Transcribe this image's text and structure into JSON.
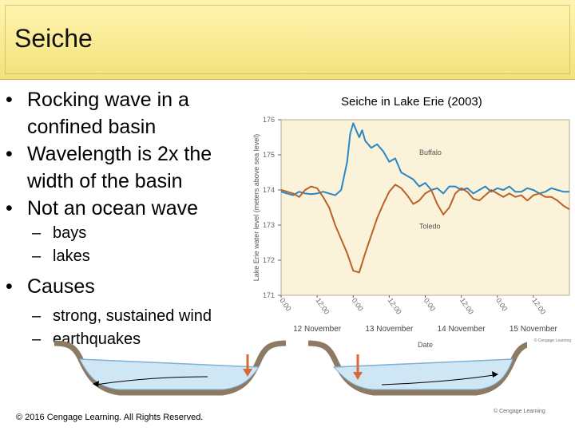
{
  "slide": {
    "title": "Seiche",
    "bullets": [
      {
        "text": "Rocking wave in a confined basin",
        "lines": [
          "Rocking wave in a",
          "confined basin"
        ]
      },
      {
        "text": "Wavelength is 2x the width of the basin",
        "lines": [
          "Wavelength is 2x the",
          "width of the basin"
        ]
      },
      {
        "text": "Not an ocean wave",
        "lines": [
          "Not an ocean wave"
        ]
      }
    ],
    "sub_bullets_1": [
      "bays",
      "lakes"
    ],
    "causes_label": "Causes",
    "sub_bullets_2": [
      "strong, sustained wind",
      "earthquakes"
    ],
    "copyright": "© 2016 Cengage Learning. All Rights Reserved.",
    "figure_credit": "© Cengage Learning",
    "chart_credit": "© Cengage Learning"
  },
  "chart_data": {
    "type": "line",
    "title": "Seiche in Lake Erie (2003)",
    "xlabel": "Date",
    "ylabel": "Lake Erie water level (meters above sea level)",
    "ylim": [
      171,
      176
    ],
    "yticks": [
      171,
      172,
      173,
      174,
      175,
      176
    ],
    "xlim": [
      0,
      96
    ],
    "xticks": [
      {
        "hour": 0,
        "label": "0:00"
      },
      {
        "hour": 12,
        "label": "12:00"
      },
      {
        "hour": 24,
        "label": "0:00"
      },
      {
        "hour": 36,
        "label": "12:00"
      },
      {
        "hour": 48,
        "label": "0:00"
      },
      {
        "hour": 60,
        "label": "12:00"
      },
      {
        "hour": 72,
        "label": "0:00"
      },
      {
        "hour": 84,
        "label": "12:00"
      }
    ],
    "day_labels": [
      {
        "hour": 12,
        "label": "12 November"
      },
      {
        "hour": 36,
        "label": "13 November"
      },
      {
        "hour": 60,
        "label": "14 November"
      },
      {
        "hour": 84,
        "label": "15 November"
      }
    ],
    "grid": false,
    "background": "#fbf3d9",
    "series": [
      {
        "name": "Buffalo",
        "color": "#2a86c4",
        "x": [
          0,
          2,
          4,
          6,
          8,
          10,
          12,
          14,
          16,
          18,
          20,
          22,
          23,
          24,
          25,
          26,
          27,
          28,
          30,
          32,
          34,
          36,
          38,
          40,
          42,
          44,
          46,
          48,
          50,
          52,
          54,
          56,
          58,
          60,
          62,
          64,
          66,
          68,
          70,
          72,
          74,
          76,
          78,
          80,
          82,
          84,
          86,
          88,
          90,
          92,
          94,
          96
        ],
        "y": [
          173.95,
          173.9,
          173.85,
          173.95,
          173.9,
          173.88,
          173.9,
          173.95,
          173.9,
          173.85,
          174,
          174.8,
          175.6,
          175.9,
          175.7,
          175.5,
          175.7,
          175.4,
          175.2,
          175.3,
          175.1,
          174.8,
          174.9,
          174.5,
          174.4,
          174.3,
          174.1,
          174.2,
          174.0,
          174.05,
          173.9,
          174.1,
          174.1,
          174.0,
          174.05,
          173.9,
          174.0,
          174.1,
          173.95,
          174.05,
          174.0,
          174.1,
          173.95,
          173.95,
          174.05,
          174.0,
          173.9,
          173.95,
          174.05,
          174.0,
          173.95,
          173.95
        ]
      },
      {
        "name": "Toledo",
        "color": "#b8622a",
        "x": [
          0,
          2,
          4,
          6,
          8,
          10,
          12,
          14,
          16,
          18,
          20,
          22,
          24,
          26,
          28,
          30,
          32,
          34,
          36,
          38,
          40,
          42,
          44,
          46,
          48,
          50,
          52,
          54,
          56,
          58,
          60,
          62,
          64,
          66,
          68,
          70,
          72,
          74,
          76,
          78,
          80,
          82,
          84,
          86,
          88,
          90,
          92,
          94,
          96
        ],
        "y": [
          174.0,
          173.95,
          173.9,
          173.8,
          174.0,
          174.1,
          174.05,
          173.8,
          173.5,
          173.0,
          172.6,
          172.2,
          171.7,
          171.65,
          172.2,
          172.7,
          173.2,
          173.6,
          173.95,
          174.15,
          174.05,
          173.85,
          173.6,
          173.7,
          173.9,
          174.0,
          173.6,
          173.3,
          173.5,
          173.9,
          174.05,
          173.95,
          173.75,
          173.7,
          173.85,
          174.0,
          173.9,
          173.8,
          173.9,
          173.8,
          173.85,
          173.7,
          173.85,
          173.9,
          173.8,
          173.8,
          173.7,
          173.55,
          173.45
        ]
      }
    ],
    "annotations": [
      {
        "text": "Buffalo",
        "series": "Buffalo"
      },
      {
        "text": "Toledo",
        "series": "Toledo"
      }
    ]
  }
}
